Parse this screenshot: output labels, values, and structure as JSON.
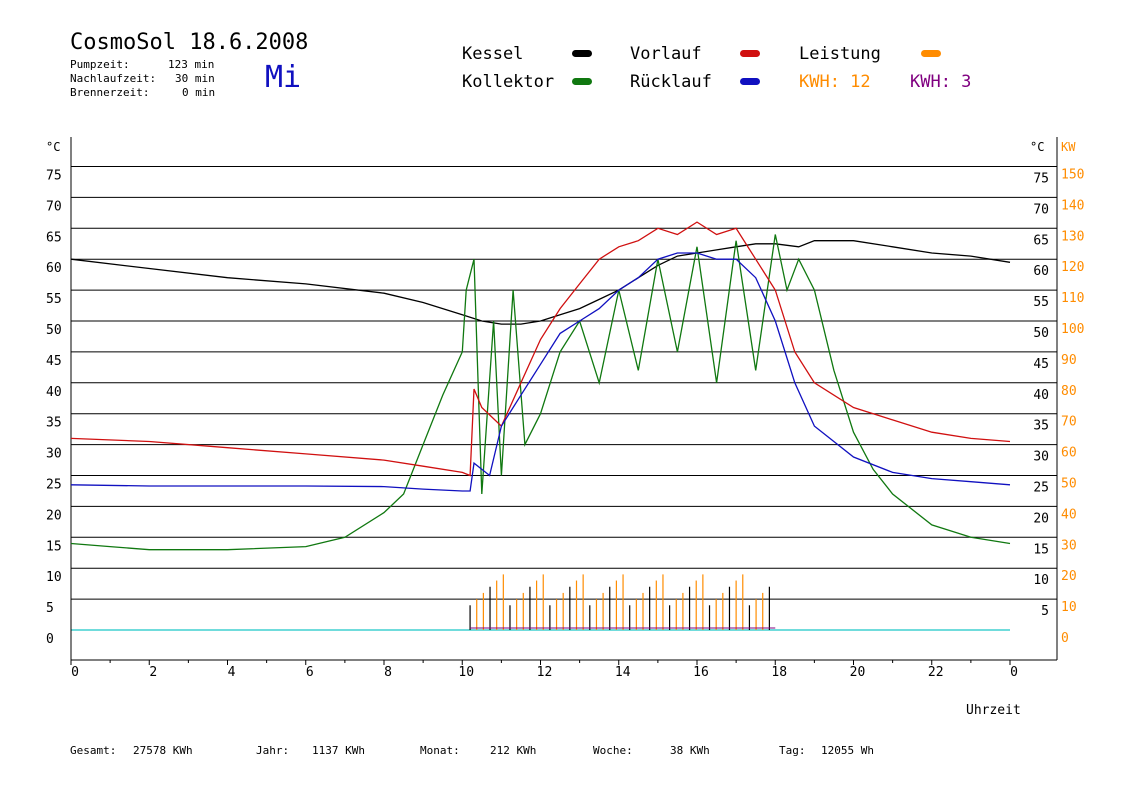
{
  "header": {
    "title": "CosmoSol 18.6.2008",
    "day": "Mi",
    "stats": [
      {
        "label": "Pumpzeit:",
        "value": "123 min"
      },
      {
        "label": "Nachlaufzeit:",
        "value": "30 min"
      },
      {
        "label": "Brennerzeit:",
        "value": "0 min"
      }
    ]
  },
  "legend": {
    "kessel": "Kessel",
    "kollektor": "Kollektor",
    "vorlauf": "Vorlauf",
    "ruecklauf": "Rücklauf",
    "leistung": "Leistung",
    "kwh_orange": "KWH: 12",
    "kwh_purple": "KWH: 3"
  },
  "footer": {
    "gesamt_label": "Gesamt:",
    "gesamt_value": "27578 KWh",
    "jahr_label": "Jahr:",
    "jahr_value": "1137 KWh",
    "monat_label": "Monat:",
    "monat_value": "212 KWh",
    "woche_label": "Woche:",
    "woche_value": "38 KWh",
    "tag_label": "Tag:",
    "tag_value": "12055 Wh"
  },
  "colors": {
    "kessel": "#000000",
    "kollektor": "#107810",
    "vorlauf": "#d01010",
    "ruecklauf": "#1010c0",
    "leistung": "#ff8c00",
    "purple": "#800080",
    "baseline": "#40d0d0"
  },
  "chart_data": {
    "type": "line",
    "xlabel": "Uhrzeit",
    "ylabel_left": "°C",
    "ylabel_right_c": "°C",
    "ylabel_right_kw": "KW",
    "x_ticks": [
      "0",
      "2",
      "4",
      "6",
      "8",
      "10",
      "12",
      "14",
      "16",
      "18",
      "20",
      "22",
      "0"
    ],
    "xlim": [
      0,
      24
    ],
    "ylim": [
      0,
      75
    ],
    "y_ticks_left": [
      "0",
      "5",
      "10",
      "15",
      "20",
      "25",
      "30",
      "35",
      "40",
      "45",
      "50",
      "55",
      "60",
      "65",
      "70",
      "75"
    ],
    "y_ticks_right_c": [
      "5",
      "10",
      "15",
      "20",
      "25",
      "30",
      "35",
      "40",
      "45",
      "50",
      "55",
      "60",
      "65",
      "70",
      "75"
    ],
    "y_ticks_right_kw": [
      "0",
      "10",
      "20",
      "30",
      "40",
      "50",
      "60",
      "70",
      "80",
      "90",
      "100",
      "110",
      "120",
      "130",
      "140",
      "150"
    ],
    "series": [
      {
        "name": "Kessel",
        "x": [
          0,
          2,
          4,
          6,
          8,
          9,
          10,
          10.5,
          11,
          11.5,
          12,
          12.5,
          13,
          13.5,
          14,
          14.5,
          15,
          15.5,
          16,
          16.5,
          17,
          17.5,
          18,
          18.6,
          19,
          20,
          21,
          22,
          23,
          24
        ],
        "y": [
          60,
          58.5,
          57,
          56,
          54.5,
          53,
          51,
          50,
          49.5,
          49.5,
          50,
          51,
          52,
          53.5,
          55,
          57,
          59,
          60.5,
          61,
          61.5,
          62,
          62.5,
          62.5,
          62,
          63,
          63,
          62,
          61,
          60.5,
          59.5
        ]
      },
      {
        "name": "Kollektor",
        "x": [
          0,
          1,
          2,
          4,
          6,
          7,
          8,
          8.5,
          9,
          9.5,
          10,
          10.1,
          10.3,
          10.5,
          10.8,
          11,
          11.3,
          11.6,
          12,
          12.5,
          13,
          13.5,
          14,
          14.5,
          15,
          15.5,
          16,
          16.5,
          17,
          17.5,
          18,
          18.3,
          18.6,
          19,
          19.5,
          20,
          20.5,
          21,
          22,
          23,
          24
        ],
        "y": [
          14,
          13.5,
          13,
          13,
          13.5,
          15,
          19,
          22,
          30,
          38,
          45,
          55,
          60,
          22,
          50,
          25,
          55,
          30,
          35,
          45,
          50,
          40,
          55,
          42,
          60,
          45,
          62,
          40,
          63,
          42,
          64,
          55,
          60,
          55,
          42,
          32,
          26,
          22,
          17,
          15,
          14
        ]
      },
      {
        "name": "Vorlauf",
        "x": [
          0,
          2,
          4,
          6,
          8,
          9,
          10,
          10.2,
          10.3,
          10.5,
          11,
          11.5,
          12,
          12.5,
          13,
          13.5,
          14,
          14.5,
          15,
          15.5,
          16,
          16.5,
          17,
          17.5,
          18,
          18.5,
          19,
          20,
          21,
          22,
          23,
          24
        ],
        "y": [
          31,
          30.5,
          29.5,
          28.5,
          27.5,
          26.5,
          25.5,
          25,
          39,
          36,
          33,
          40,
          47,
          52,
          56,
          60,
          62,
          63,
          65,
          64,
          66,
          64,
          65,
          60,
          55,
          45,
          40,
          36,
          34,
          32,
          31,
          30.5
        ]
      },
      {
        "name": "Rücklauf",
        "x": [
          0,
          2,
          4,
          6,
          8,
          9,
          10,
          10.2,
          10.3,
          10.7,
          11,
          11.5,
          12,
          12.5,
          13,
          13.5,
          14,
          14.5,
          15,
          15.5,
          16,
          16.5,
          17,
          17.5,
          18,
          18.5,
          19,
          20,
          21,
          22,
          23,
          24
        ],
        "y": [
          23.5,
          23.3,
          23.3,
          23.3,
          23.2,
          22.8,
          22.5,
          22.5,
          27,
          25,
          33,
          38,
          43,
          48,
          50,
          52,
          55,
          57,
          60,
          61,
          61,
          60,
          60,
          57,
          50,
          40,
          33,
          28,
          25.5,
          24.5,
          24,
          23.5
        ]
      }
    ],
    "leistung_active_hours": [
      10.2,
      18
    ]
  }
}
